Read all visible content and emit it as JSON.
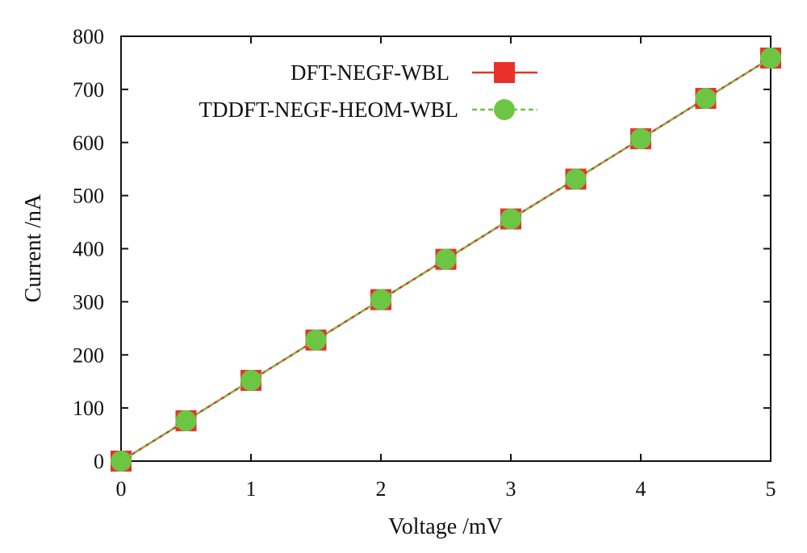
{
  "chart_data": {
    "type": "line",
    "xlabel": "Voltage /mV",
    "ylabel": "Current /nA",
    "xlim": [
      0,
      5
    ],
    "ylim": [
      0,
      800
    ],
    "xticks": [
      "0",
      "1",
      "2",
      "3",
      "4",
      "5"
    ],
    "yticks": [
      "0",
      "100",
      "200",
      "300",
      "400",
      "500",
      "600",
      "700",
      "800"
    ],
    "grid": false,
    "legend_position": "top-right",
    "x": [
      0,
      0.5,
      1,
      1.5,
      2,
      2.5,
      3,
      3.5,
      4,
      4.5,
      5
    ],
    "series": [
      {
        "name": "DFT-NEGF-WBL",
        "color": "#e8312a",
        "line": "solid",
        "marker": "square",
        "values": [
          0,
          76,
          152,
          228,
          304,
          380,
          456,
          531,
          607,
          683,
          759
        ]
      },
      {
        "name": "TDDFT-NEGF-HEOM-WBL",
        "color": "#6cc644",
        "line": "dashed",
        "marker": "circle",
        "values": [
          0,
          76,
          152,
          228,
          304,
          380,
          456,
          531,
          607,
          683,
          759
        ]
      }
    ]
  }
}
